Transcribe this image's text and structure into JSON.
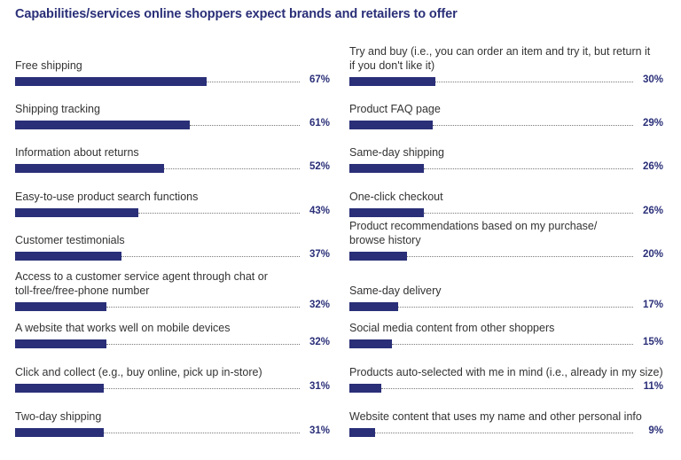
{
  "chart_data": {
    "type": "bar",
    "title": "Capabilities/services online shoppers expect brands and retailers to offer",
    "unit": "%",
    "xlim": [
      0,
      100
    ],
    "color": "#2a2f78",
    "columns": [
      {
        "items": [
          {
            "label": [
              "Free shipping"
            ],
            "value": 67,
            "display": "67%"
          },
          {
            "label": [
              "Shipping tracking"
            ],
            "value": 61,
            "display": "61%"
          },
          {
            "label": [
              "Information about returns"
            ],
            "value": 52,
            "display": "52%"
          },
          {
            "label": [
              "Easy-to-use product search functions"
            ],
            "value": 43,
            "display": "43%"
          },
          {
            "label": [
              "Customer testimonials"
            ],
            "value": 37,
            "display": "37%"
          },
          {
            "label": [
              "Access to a customer service agent through chat or",
              "toll-free/free-phone number"
            ],
            "value": 32,
            "display": "32%"
          },
          {
            "label": [
              "A website that works well on mobile devices"
            ],
            "value": 32,
            "display": "32%"
          },
          {
            "label": [
              "Click and collect (e.g., buy online, pick up in-store)"
            ],
            "value": 31,
            "display": "31%"
          },
          {
            "label": [
              "Two-day shipping"
            ],
            "value": 31,
            "display": "31%"
          }
        ]
      },
      {
        "items": [
          {
            "label": [
              "Try and buy (i.e., you can order an item and try it, but return it",
              "if you don't like it)"
            ],
            "value": 30,
            "display": "30%"
          },
          {
            "label": [
              "Product FAQ page"
            ],
            "value": 29,
            "display": "29%"
          },
          {
            "label": [
              "Same-day shipping"
            ],
            "value": 26,
            "display": "26%"
          },
          {
            "label": [
              "One-click checkout"
            ],
            "value": 26,
            "display": "26%"
          },
          {
            "label": [
              "Product recommendations based on my purchase/",
              "browse history"
            ],
            "value": 20,
            "display": "20%"
          },
          {
            "label": [
              "Same-day delivery"
            ],
            "value": 17,
            "display": "17%"
          },
          {
            "label": [
              "Social media content from other shoppers"
            ],
            "value": 15,
            "display": "15%"
          },
          {
            "label": [
              "Products auto-selected with me in mind (i.e., already in my size)"
            ],
            "value": 11,
            "display": "11%"
          },
          {
            "label": [
              "Website content that uses my name and other personal info"
            ],
            "value": 9,
            "display": "9%"
          }
        ]
      }
    ]
  }
}
